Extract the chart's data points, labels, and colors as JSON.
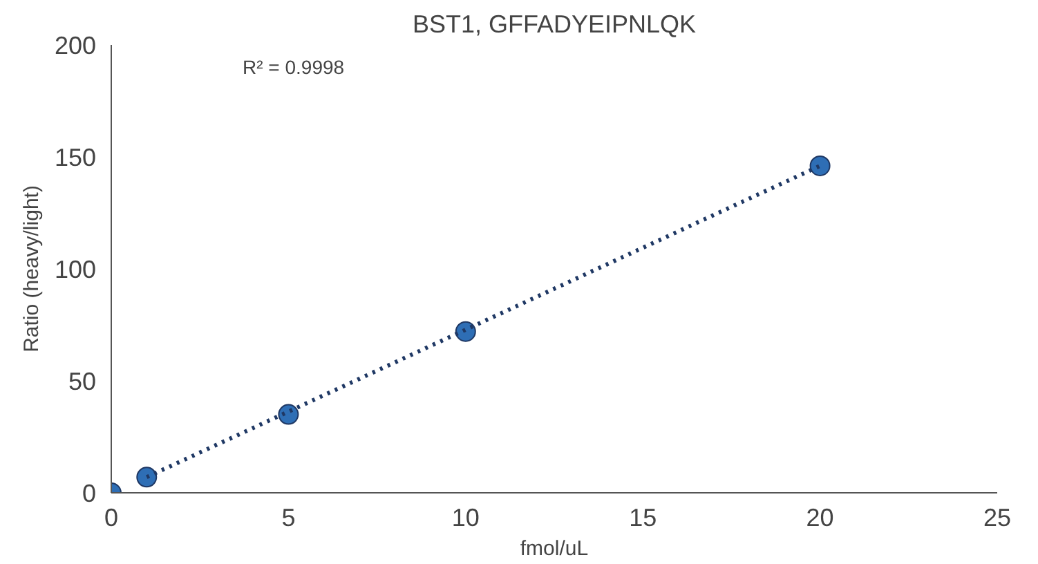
{
  "chart_data": {
    "type": "scatter",
    "title": "BST1, GFFADYEIPNLQK",
    "xlabel": "fmol/uL",
    "ylabel": "Ratio (heavy/light)",
    "annotations": [
      "R² = 0.9998"
    ],
    "x": [
      0,
      1,
      5,
      10,
      20
    ],
    "series": [
      {
        "color": "#2e6eb5",
        "marker": "circle",
        "values": [
          0,
          7,
          35,
          72,
          146
        ]
      },
      {
        "type": "line",
        "color": "#1f3864",
        "line_style": "dotted",
        "x": [
          1,
          20
        ],
        "values": [
          7,
          146
        ]
      }
    ],
    "xlim": [
      0,
      25
    ],
    "ylim": [
      0,
      200
    ],
    "xticks": [
      0,
      5,
      10,
      15,
      20,
      25
    ],
    "yticks": [
      0,
      50,
      100,
      150,
      200
    ],
    "grid": false
  }
}
